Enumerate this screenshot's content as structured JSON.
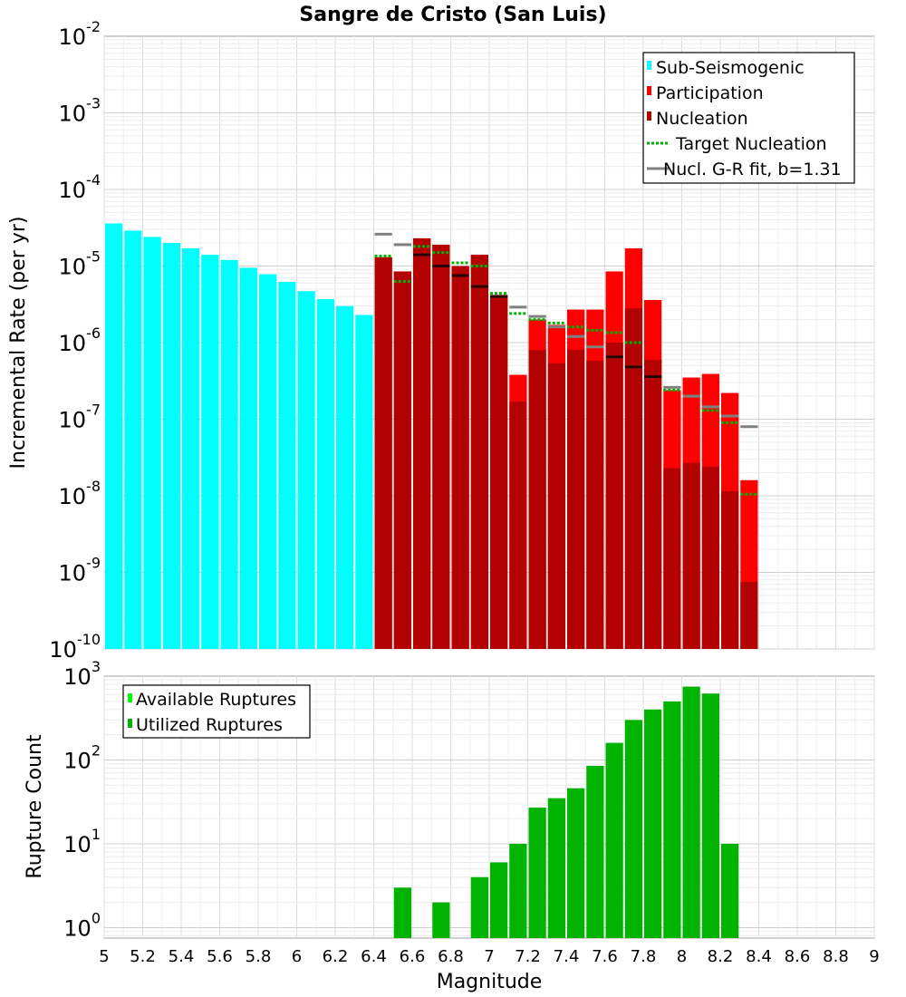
{
  "chart_data": [
    {
      "type": "bar",
      "title": "Sangre de Cristo (San Luis)",
      "xlabel": "Magnitude",
      "ylabel": "Incremental Rate (per yr)",
      "yscale": "log",
      "xlim": [
        5,
        9
      ],
      "ylim": [
        1e-10,
        0.01
      ],
      "ytick_exponents": [
        "-10",
        "-9",
        "-8",
        "-7",
        "-6",
        "-5",
        "-4",
        "-3",
        "-2"
      ],
      "grid": true,
      "legend_position": "top-right",
      "legend": [
        "Sub-Seismogenic",
        "Participation",
        "Nucleation",
        "Target Nucleation",
        "Nucl. G-R fit, b=1.31"
      ],
      "series": [
        {
          "name": "Sub-Seismogenic",
          "color": "#00ffff",
          "kind": "bar",
          "x": [
            5.05,
            5.15,
            5.25,
            5.35,
            5.45,
            5.55,
            5.65,
            5.75,
            5.85,
            5.95,
            6.05,
            6.15,
            6.25,
            6.35
          ],
          "y": [
            3.6e-05,
            2.9e-05,
            2.4e-05,
            2e-05,
            1.7e-05,
            1.4e-05,
            1.2e-05,
            9.5e-06,
            7.8e-06,
            6.2e-06,
            4.7e-06,
            3.7e-06,
            3e-06,
            2.3e-06
          ]
        },
        {
          "name": "Participation",
          "color": "#ff0000",
          "kind": "bar",
          "x": [
            6.45,
            6.55,
            6.65,
            6.75,
            6.85,
            6.95,
            7.05,
            7.15,
            7.25,
            7.35,
            7.45,
            7.55,
            7.65,
            7.75,
            7.85,
            7.95,
            8.05,
            8.15,
            8.25,
            8.35
          ],
          "y": [
            1.3e-05,
            8.5e-06,
            2.3e-05,
            1.9e-05,
            1e-05,
            1.4e-05,
            4.2e-06,
            3.8e-07,
            2e-06,
            1.7e-06,
            2.7e-06,
            2.7e-06,
            8.5e-06,
            1.7e-05,
            3.6e-06,
            2.4e-07,
            3.5e-07,
            3.9e-07,
            2.2e-07,
            1.6e-08
          ]
        },
        {
          "name": "Nucleation",
          "color": "#b30000",
          "kind": "bar",
          "x": [
            6.45,
            6.55,
            6.65,
            6.75,
            6.85,
            6.95,
            7.05,
            7.15,
            7.25,
            7.35,
            7.45,
            7.55,
            7.65,
            7.75,
            7.85,
            7.95,
            8.05,
            8.15,
            8.25,
            8.35
          ],
          "y": [
            1.3e-05,
            8.5e-06,
            2.3e-05,
            1.9e-05,
            1e-05,
            1.4e-05,
            4e-06,
            1.7e-07,
            8e-07,
            5.4e-07,
            8e-07,
            5.8e-07,
            1e-06,
            2.8e-06,
            6e-07,
            2.3e-08,
            2.7e-08,
            2.4e-08,
            1.15e-08,
            7.5e-10
          ]
        },
        {
          "name": "Target Nucleation",
          "color": "#00b300",
          "kind": "segment",
          "x": [
            6.45,
            6.55,
            6.65,
            6.75,
            6.85,
            6.95,
            7.05,
            7.15,
            7.25,
            7.35,
            7.45,
            7.55,
            7.65,
            7.75,
            7.85,
            7.95,
            8.05,
            8.15,
            8.25,
            8.35
          ],
          "y": [
            1.35e-05,
            6.3e-06,
            1.8e-05,
            1.5e-05,
            1.1e-05,
            1e-05,
            4.4e-06,
            2.4e-06,
            2e-06,
            1.8e-06,
            1.6e-06,
            1.45e-06,
            1.35e-06,
            1e-06,
            3.6e-07,
            2.4e-07,
            2e-07,
            1.3e-07,
            9e-08,
            1.05e-08
          ]
        },
        {
          "name": "Nucl. G-R fit, b=1.31",
          "color": "#808080",
          "kind": "segment",
          "x": [
            6.45,
            6.55,
            6.65,
            6.75,
            6.85,
            6.95,
            7.05,
            7.15,
            7.25,
            7.35,
            7.45,
            7.55,
            7.65,
            7.75,
            7.85,
            7.95,
            8.05,
            8.15,
            8.25,
            8.35
          ],
          "y": [
            2.6e-05,
            1.9e-05,
            1.4e-05,
            1e-05,
            7.5e-06,
            5.4e-06,
            4e-06,
            2.9e-06,
            2.2e-06,
            1.6e-06,
            1.2e-06,
            8.8e-07,
            6.5e-07,
            4.8e-07,
            3.6e-07,
            2.6e-07,
            2e-07,
            1.45e-07,
            1.1e-07,
            8e-08
          ]
        }
      ]
    },
    {
      "type": "bar",
      "xlabel": "Magnitude",
      "ylabel": "Rupture Count",
      "yscale": "log",
      "xlim": [
        5,
        9
      ],
      "ylim": [
        0.75,
        1000
      ],
      "ytick_exponents": [
        "0",
        "1",
        "2",
        "3"
      ],
      "xtick_labels": [
        "5",
        "5.2",
        "5.4",
        "5.6",
        "5.8",
        "6",
        "6.2",
        "6.4",
        "6.6",
        "6.8",
        "7",
        "7.2",
        "7.4",
        "7.6",
        "7.8",
        "8",
        "8.2",
        "8.4",
        "8.6",
        "8.8",
        "9"
      ],
      "grid": true,
      "legend_position": "top-left",
      "legend": [
        "Available Ruptures",
        "Utilized Ruptures"
      ],
      "legend_colors": [
        "#00ff00",
        "#00b300"
      ],
      "series": [
        {
          "name": "Utilized Ruptures",
          "color": "#00b300",
          "x": [
            6.55,
            6.75,
            6.95,
            7.05,
            7.15,
            7.25,
            7.35,
            7.45,
            7.55,
            7.65,
            7.75,
            7.85,
            7.95,
            8.05,
            8.15,
            8.25
          ],
          "y": [
            3,
            2,
            4,
            6,
            10,
            27,
            35,
            46,
            85,
            160,
            300,
            400,
            500,
            750,
            620,
            10
          ]
        }
      ]
    }
  ]
}
